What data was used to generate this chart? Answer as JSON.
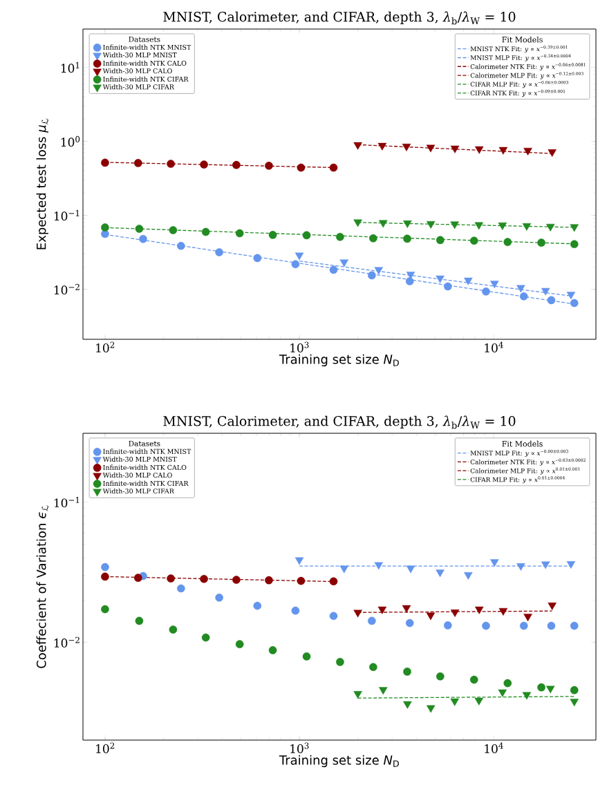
{
  "chart_data": [
    {
      "type": "scatter",
      "title": "MNIST, Calorimeter, and CIFAR, depth 3, *λ*$_{b}$/*λ*$_{W}$ = 10",
      "xlabel": "Training set size *N*$_{D}$",
      "ylabel": "Expected test loss *μ*$_{ℒ}$",
      "log": "xy",
      "legend": "top left",
      "legend_title": "Datasets",
      "annotations": [
        "Fit Models"
      ],
      "xlim": [
        77,
        33600
      ],
      "ylim": [
        0.0021,
        33
      ],
      "xticks": [
        {
          "value": 100,
          "label": "10$^{2}$"
        },
        {
          "value": 1000,
          "label": "10$^{3}$"
        },
        {
          "value": 10000,
          "label": "10$^{4}$"
        }
      ],
      "yticks": [
        {
          "value": 0.01,
          "label": "10$^{−2}$"
        },
        {
          "value": 0.1,
          "label": "10$^{−1}$"
        },
        {
          "value": 1,
          "label": "10$^{0}$"
        },
        {
          "value": 10,
          "label": "10$^{1}$"
        }
      ],
      "series": [
        {
          "name": "Infinite-width NTK MNIST",
          "marker": "circle",
          "color": "#6495ed",
          "x": [
            100,
            157,
            246,
            387,
            608,
            955,
            1500,
            2360,
            3700,
            5810,
            9130,
            14300,
            19800,
            26000
          ],
          "values": [
            0.056,
            0.0478,
            0.0386,
            0.0316,
            0.0264,
            0.0218,
            0.0183,
            0.0154,
            0.0128,
            0.0109,
            0.0093,
            0.008,
            0.0071,
            0.0065
          ]
        },
        {
          "name": "Width-30 MLP MNIST",
          "marker": "triangle",
          "color": "#6495ed",
          "x": [
            1000,
            1700,
            2560,
            3740,
            5300,
            7400,
            10100,
            13800,
            18500,
            25000
          ],
          "values": [
            0.0288,
            0.0233,
            0.0184,
            0.0159,
            0.0141,
            0.0132,
            0.012,
            0.0105,
            0.0096,
            0.0085
          ]
        },
        {
          "name": "Infinite-width NTK CALO",
          "marker": "circle",
          "color": "#8b0000",
          "x": [
            100,
            148,
            218,
            323,
            474,
            697,
            1020,
            1500
          ],
          "values": [
            0.514,
            0.509,
            0.497,
            0.485,
            0.479,
            0.468,
            0.441,
            0.441
          ]
        },
        {
          "name": "Width-30 MLP CALO",
          "marker": "triangle",
          "color": "#8b0000",
          "x": [
            2000,
            2670,
            3560,
            4740,
            6320,
            8430,
            11200,
            15000,
            20000
          ],
          "values": [
            0.897,
            0.877,
            0.857,
            0.828,
            0.807,
            0.789,
            0.771,
            0.753,
            0.72
          ]
        },
        {
          "name": "Infinite-width NTK CIFAR",
          "marker": "circle",
          "color": "#228b22",
          "x": [
            100,
            150,
            224,
            330,
            493,
            730,
            1090,
            1620,
            2400,
            3590,
            5310,
            7930,
            11800,
            17600,
            26000
          ],
          "values": [
            0.0684,
            0.0656,
            0.0628,
            0.0596,
            0.0571,
            0.0542,
            0.0536,
            0.0509,
            0.0488,
            0.0482,
            0.0462,
            0.0453,
            0.0435,
            0.0426,
            0.0407
          ]
        },
        {
          "name": "Width-30 MLP CIFAR",
          "marker": "triangle",
          "color": "#228b22",
          "x": [
            2000,
            2700,
            3600,
            4750,
            6300,
            8400,
            11100,
            14800,
            19600,
            26000
          ],
          "values": [
            0.081,
            0.0794,
            0.0785,
            0.0768,
            0.076,
            0.0743,
            0.0736,
            0.0721,
            0.0706,
            0.0698
          ]
        },
        {
          "name": "MNIST NTK Fit: *y* ∝ *x*$^{−0.39±0.001}$",
          "type": "line",
          "line_style": "dashed",
          "color": "#6495ed",
          "x": [
            100,
            26000
          ],
          "values": [
            0.055,
            0.0063
          ]
        },
        {
          "name": "MNIST MLP Fit: *y* ∝ *x*$^{−0.34±0.0004}$",
          "type": "line",
          "line_style": "dashed",
          "color": "#6495ed",
          "x": [
            1000,
            25000
          ],
          "values": [
            0.024,
            0.0081
          ]
        },
        {
          "name": "Calorimeter NTK Fit: *y* ∝ *x*$^{−0.06±0.0081}$",
          "type": "line",
          "line_style": "dashed",
          "color": "#8b0000",
          "x": [
            100,
            1500
          ],
          "values": [
            0.52,
            0.442
          ]
        },
        {
          "name": "Calorimeter MLP Fit: *y* ∝ *x*$^{−0.12±0.003}$",
          "type": "line",
          "line_style": "dashed",
          "color": "#8b0000",
          "x": [
            2000,
            20000
          ],
          "values": [
            0.9,
            0.684
          ]
        },
        {
          "name": "CIFAR MLP Fit: *y* ∝ *x*$^{−0.06±0.0003}$",
          "type": "line",
          "line_style": "dashed",
          "color": "#228b22",
          "x": [
            2000,
            26000
          ],
          "values": [
            0.08,
            0.0686
          ]
        },
        {
          "name": "CIFAR NTK Fit: *y* ∝ *x*$^{−0.09±0.001}$",
          "type": "line",
          "line_style": "dashed",
          "color": "#228b22",
          "x": [
            100,
            26000
          ],
          "values": [
            0.068,
            0.041
          ]
        }
      ]
    },
    {
      "type": "scatter",
      "title": "MNIST, Calorimeter, and CIFAR, depth 3, *λ*$_{b}$/*λ*$_{W}$ = 10",
      "xlabel": "Training set size *N*$_{D}$",
      "ylabel": "Coeffecient of Variation *ϵ*$_{ℒ}$",
      "log": "xy",
      "legend": "top left",
      "legend_title": "Datasets",
      "annotations": [
        "Fit Models"
      ],
      "xlim": [
        77,
        33600
      ],
      "ylim": [
        0.002,
        0.31
      ],
      "xticks": [
        {
          "value": 100,
          "label": "10$^{2}$"
        },
        {
          "value": 1000,
          "label": "10$^{3}$"
        },
        {
          "value": 10000,
          "label": "10$^{4}$"
        }
      ],
      "yticks": [
        {
          "value": 0.01,
          "label": "10$^{−2}$"
        },
        {
          "value": 0.1,
          "label": "10$^{−1}$"
        }
      ],
      "series": [
        {
          "name": "Infinite-width NTK MNIST",
          "marker": "circle",
          "color": "#6495ed",
          "x": [
            100,
            157,
            246,
            387,
            608,
            955,
            1500,
            2360,
            3700,
            5810,
            9130,
            14300,
            19800,
            26000
          ],
          "values": [
            0.0344,
            0.0297,
            0.0242,
            0.0208,
            0.0182,
            0.0168,
            0.0154,
            0.0142,
            0.0137,
            0.0132,
            0.0131,
            0.0131,
            0.0131,
            0.0131
          ]
        },
        {
          "name": "Width-30 MLP MNIST",
          "marker": "triangle",
          "color": "#6495ed",
          "x": [
            1000,
            1700,
            2560,
            3740,
            5300,
            7400,
            10100,
            13800,
            18500,
            25000
          ],
          "values": [
            0.0387,
            0.0337,
            0.0357,
            0.0337,
            0.0316,
            0.0303,
            0.0375,
            0.0351,
            0.0361,
            0.0363
          ]
        },
        {
          "name": "Infinite-width NTK CALO",
          "marker": "circle",
          "color": "#8b0000",
          "x": [
            100,
            148,
            218,
            323,
            474,
            697,
            1020,
            1500
          ],
          "values": [
            0.0294,
            0.0288,
            0.0285,
            0.0283,
            0.0279,
            0.0277,
            0.0274,
            0.0272
          ]
        },
        {
          "name": "Width-30 MLP CALO",
          "marker": "triangle",
          "color": "#8b0000",
          "x": [
            2000,
            2670,
            3560,
            4740,
            6320,
            8430,
            11200,
            15000,
            20000
          ],
          "values": [
            0.0163,
            0.0172,
            0.0176,
            0.0156,
            0.0164,
            0.0172,
            0.0168,
            0.0153,
            0.0184
          ]
        },
        {
          "name": "Infinite-width NTK CIFAR",
          "marker": "circle",
          "color": "#228b22",
          "x": [
            100,
            150,
            224,
            330,
            493,
            730,
            1090,
            1620,
            2400,
            3590,
            5310,
            7930,
            11800,
            17600,
            26000
          ],
          "values": [
            0.0172,
            0.0142,
            0.0123,
            0.0108,
            0.00968,
            0.00877,
            0.00791,
            0.00723,
            0.00665,
            0.00616,
            0.0057,
            0.0054,
            0.0051,
            0.00476,
            0.00455
          ]
        },
        {
          "name": "Width-30 MLP CIFAR",
          "marker": "triangle",
          "color": "#228b22",
          "x": [
            2000,
            2700,
            3600,
            4750,
            6300,
            8400,
            11100,
            14800,
            19600,
            26000
          ],
          "values": [
            0.00429,
            0.00458,
            0.00363,
            0.0034,
            0.0038,
            0.00384,
            0.00441,
            0.00422,
            0.00468,
            0.00378
          ]
        },
        {
          "name": "MNIST MLP Fit: *y* ∝ *x*$^{−0.00±0.003}$",
          "type": "line",
          "line_style": "dashed",
          "color": "#6495ed",
          "x": [
            1000,
            25000
          ],
          "values": [
            0.035,
            0.035
          ]
        },
        {
          "name": "Calorimeter NTK Fit: *y* ∝ *x*$^{−0.03±0.0002}$",
          "type": "line",
          "line_style": "dashed",
          "color": "#8b0000",
          "x": [
            100,
            1500
          ],
          "values": [
            0.0294,
            0.0271
          ]
        },
        {
          "name": "Calorimeter MLP Fit: *y* ∝ *x*$^{0.01±0.001}$",
          "type": "line",
          "line_style": "dashed",
          "color": "#8b0000",
          "x": [
            2000,
            20000
          ],
          "values": [
            0.0163,
            0.0167
          ]
        },
        {
          "name": "CIFAR MLP Fit: *y* ∝ *x*$^{0.01±0.0004}$",
          "type": "line",
          "line_style": "dashed",
          "color": "#228b22",
          "x": [
            2000,
            26000
          ],
          "values": [
            0.00399,
            0.0041
          ]
        }
      ]
    }
  ]
}
